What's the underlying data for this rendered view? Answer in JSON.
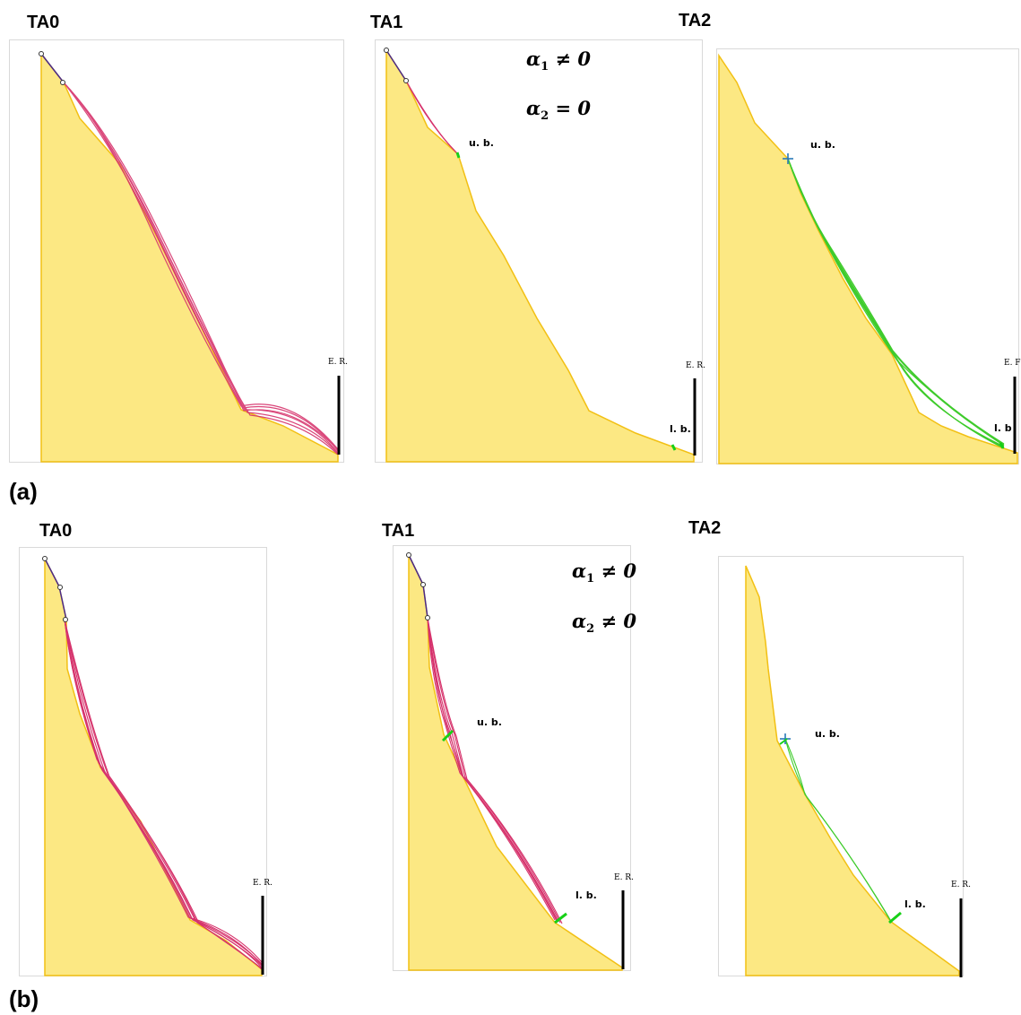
{
  "colors": {
    "slope_fill": "#fce883",
    "slope_edge": "#f2c014",
    "trajectories_ta0_ta1": "#d6336c",
    "trajectories_ta2": "#3ecb2b",
    "marker": "#17d017",
    "start_path": "#4a2a8a",
    "barrier": "#000000"
  },
  "part_a": {
    "label": "(a)",
    "panels": [
      {
        "title": "TA0",
        "er_label": "E. R."
      },
      {
        "title": "TA1",
        "alpha1": "α",
        "alpha1_sub": "1",
        "alpha1_rel": " ≠ 0",
        "alpha2": "α",
        "alpha2_sub": "2",
        "alpha2_rel": " = 0",
        "ub": "u. b.",
        "lb": "l. b.",
        "er_label": "E. R."
      },
      {
        "title": "TA2",
        "ub": "u. b.",
        "lb": "l. b",
        "er_label": "E. F"
      }
    ]
  },
  "part_b": {
    "label": "(b)",
    "panels": [
      {
        "title": "TA0",
        "er_label": "E. R."
      },
      {
        "title": "TA1",
        "alpha1": "α",
        "alpha1_sub": "1",
        "alpha1_rel": " ≠ 0",
        "alpha2": "α",
        "alpha2_sub": "2",
        "alpha2_rel": " ≠ 0",
        "ub": "u. b.",
        "lb": "l. b.",
        "er_label": "E. R."
      },
      {
        "title": "TA2",
        "ub": "u. b.",
        "lb": "l. b.",
        "er_label": "E. R."
      }
    ]
  }
}
